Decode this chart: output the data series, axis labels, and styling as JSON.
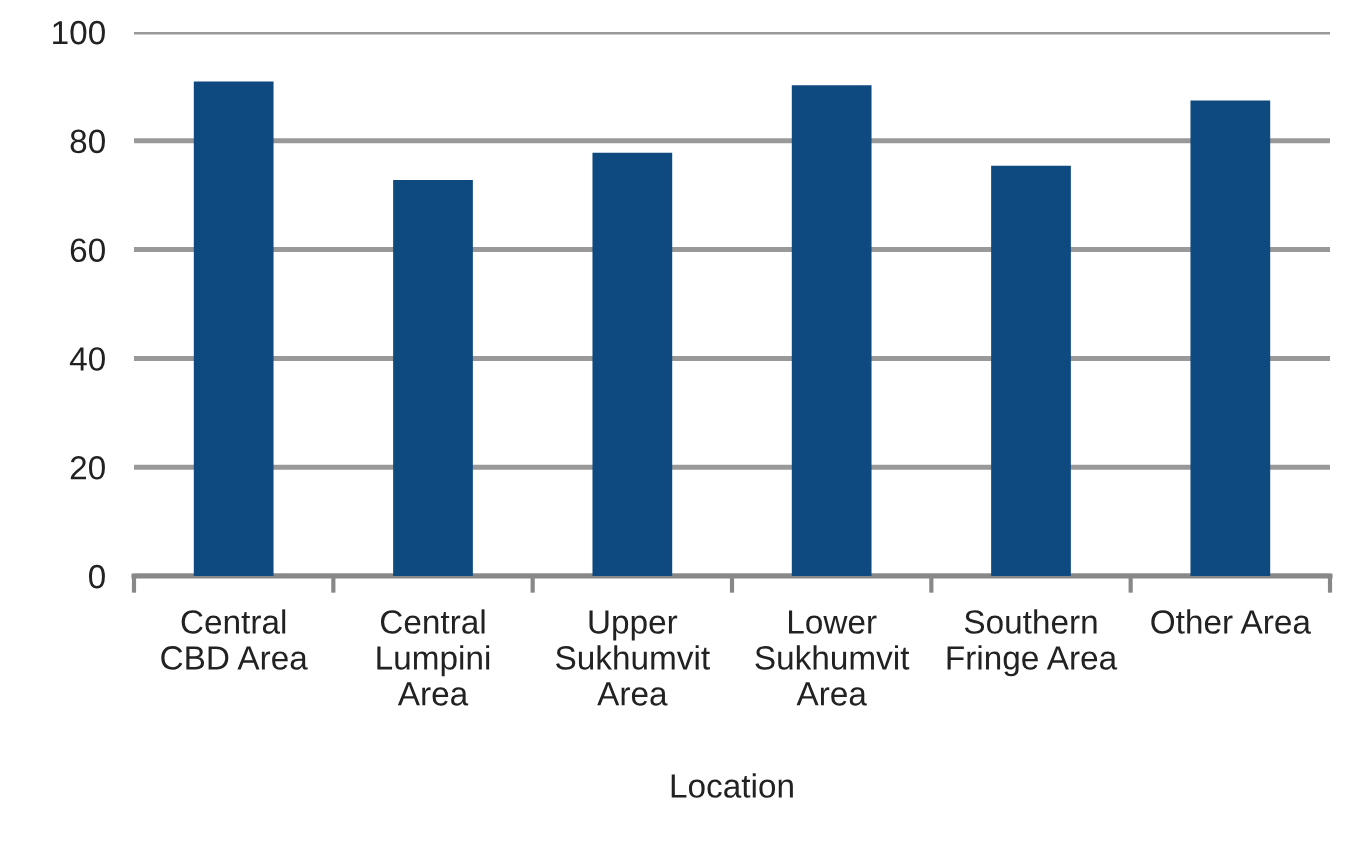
{
  "chart_data": {
    "type": "bar",
    "xlabel": "Location",
    "categories": [
      "Central\nCBD Area",
      "Central\nLumpini\nArea",
      "Upper\nSukhumvit\nArea",
      "Lower\nSukhumvit\nArea",
      "Southern\nFringe Area",
      "Other Area"
    ],
    "values": [
      90.9,
      72.8,
      77.8,
      90.2,
      75.4,
      87.4
    ],
    "color": "#0e4a80",
    "ylim": [
      0,
      100
    ],
    "yticks": [
      0,
      20,
      40,
      60,
      80,
      100
    ],
    "grid": "y",
    "legend": false
  }
}
